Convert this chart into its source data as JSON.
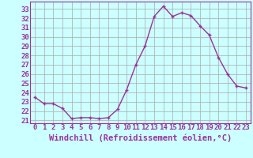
{
  "x": [
    0,
    1,
    2,
    3,
    4,
    5,
    6,
    7,
    8,
    9,
    10,
    11,
    12,
    13,
    14,
    15,
    16,
    17,
    18,
    19,
    20,
    21,
    22,
    23
  ],
  "y": [
    23.5,
    22.8,
    22.8,
    22.3,
    21.2,
    21.3,
    21.3,
    21.2,
    21.3,
    22.2,
    24.3,
    27.0,
    29.0,
    32.2,
    33.3,
    32.2,
    32.6,
    32.3,
    31.2,
    30.2,
    27.8,
    26.0,
    24.7,
    24.5
  ],
  "line_color": "#993399",
  "marker": "+",
  "marker_size": 3,
  "marker_linewidth": 1.0,
  "bg_color": "#ccffff",
  "grid_color": "#aaaaaa",
  "xlabel": "Windchill (Refroidissement éolien,°C)",
  "xlim": [
    -0.5,
    23.5
  ],
  "ylim": [
    20.7,
    33.8
  ],
  "yticks": [
    21,
    22,
    23,
    24,
    25,
    26,
    27,
    28,
    29,
    30,
    31,
    32,
    33
  ],
  "xticks": [
    0,
    1,
    2,
    3,
    4,
    5,
    6,
    7,
    8,
    9,
    10,
    11,
    12,
    13,
    14,
    15,
    16,
    17,
    18,
    19,
    20,
    21,
    22,
    23
  ],
  "tick_label_size": 6.5,
  "xlabel_size": 7.5,
  "spine_color": "#993399",
  "line_width": 1.0
}
